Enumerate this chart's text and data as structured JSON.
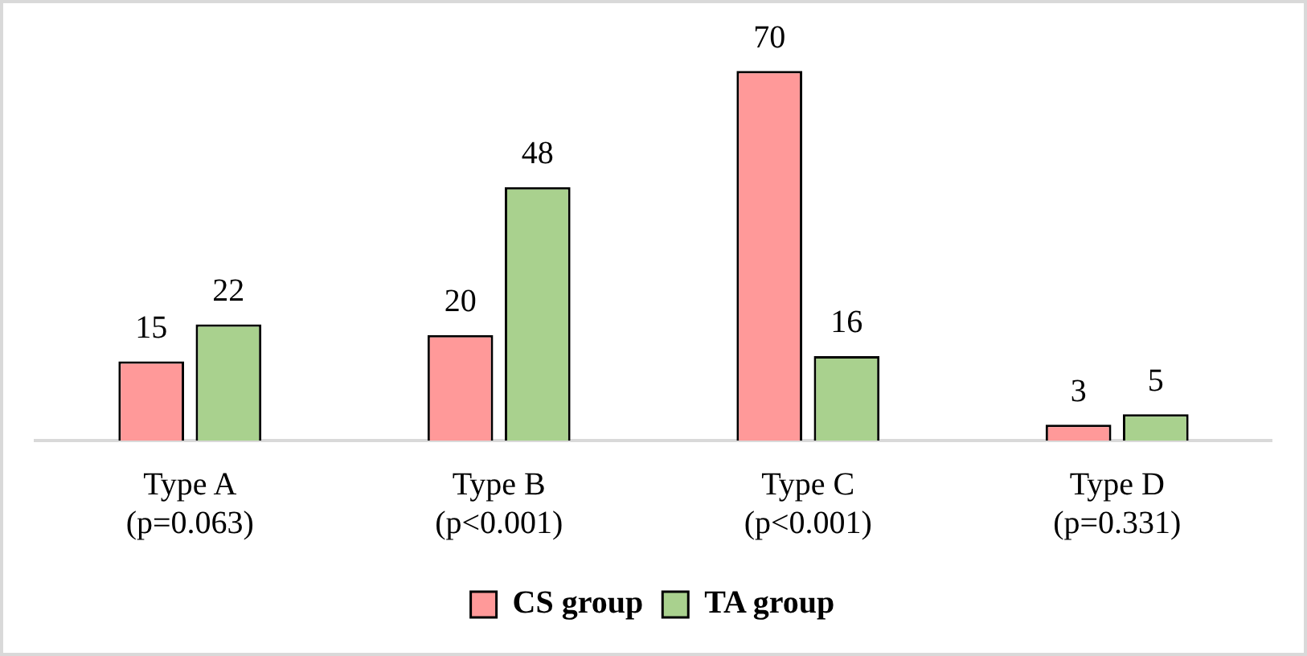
{
  "chart_data": {
    "type": "bar",
    "categories": [
      "Type A\n(p=0.063)",
      "Type B\n(p<0.001)",
      "Type C\n(p<0.001)",
      "Type D\n(p=0.331)"
    ],
    "series": [
      {
        "name": "CS group",
        "color": "#ff9999",
        "values": [
          15,
          20,
          70,
          3
        ]
      },
      {
        "name": "TA group",
        "color": "#a9d18e",
        "values": [
          22,
          48,
          16,
          5
        ]
      }
    ],
    "data_labels": true,
    "legend": "bottom",
    "grid": false,
    "tick_labels": "x"
  }
}
